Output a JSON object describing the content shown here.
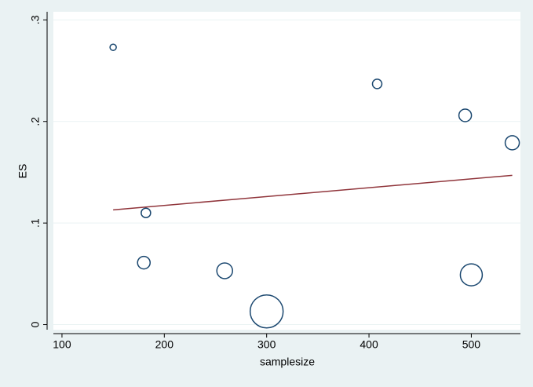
{
  "chart_data": {
    "type": "bubble",
    "x_label": "samplesize",
    "y_label": "ES",
    "xlim": [
      91.6,
      548
    ],
    "ylim": [
      -0.005,
      0.308
    ],
    "xticks": [
      100,
      200,
      300,
      400,
      500
    ],
    "yticks": [
      0,
      {
        "value": 0.1,
        "label": ".1"
      },
      {
        "value": 0.2,
        "label": ".2"
      },
      {
        "value": 0.3,
        "label": ".3"
      }
    ],
    "grid": true,
    "points": {
      "color": "#1a476f",
      "x": [
        150,
        182,
        180,
        259,
        300,
        408,
        494,
        540,
        500
      ],
      "values": [
        0.273,
        0.11,
        0.061,
        0.053,
        0.013,
        0.237,
        0.206,
        0.179,
        0.049
      ],
      "sizes": [
        16,
        36,
        64,
        100,
        441,
        36,
        64,
        81,
        196
      ]
    },
    "fit": {
      "color": "#90353b",
      "x": [
        150,
        540
      ],
      "values": [
        0.113,
        0.147
      ]
    }
  }
}
